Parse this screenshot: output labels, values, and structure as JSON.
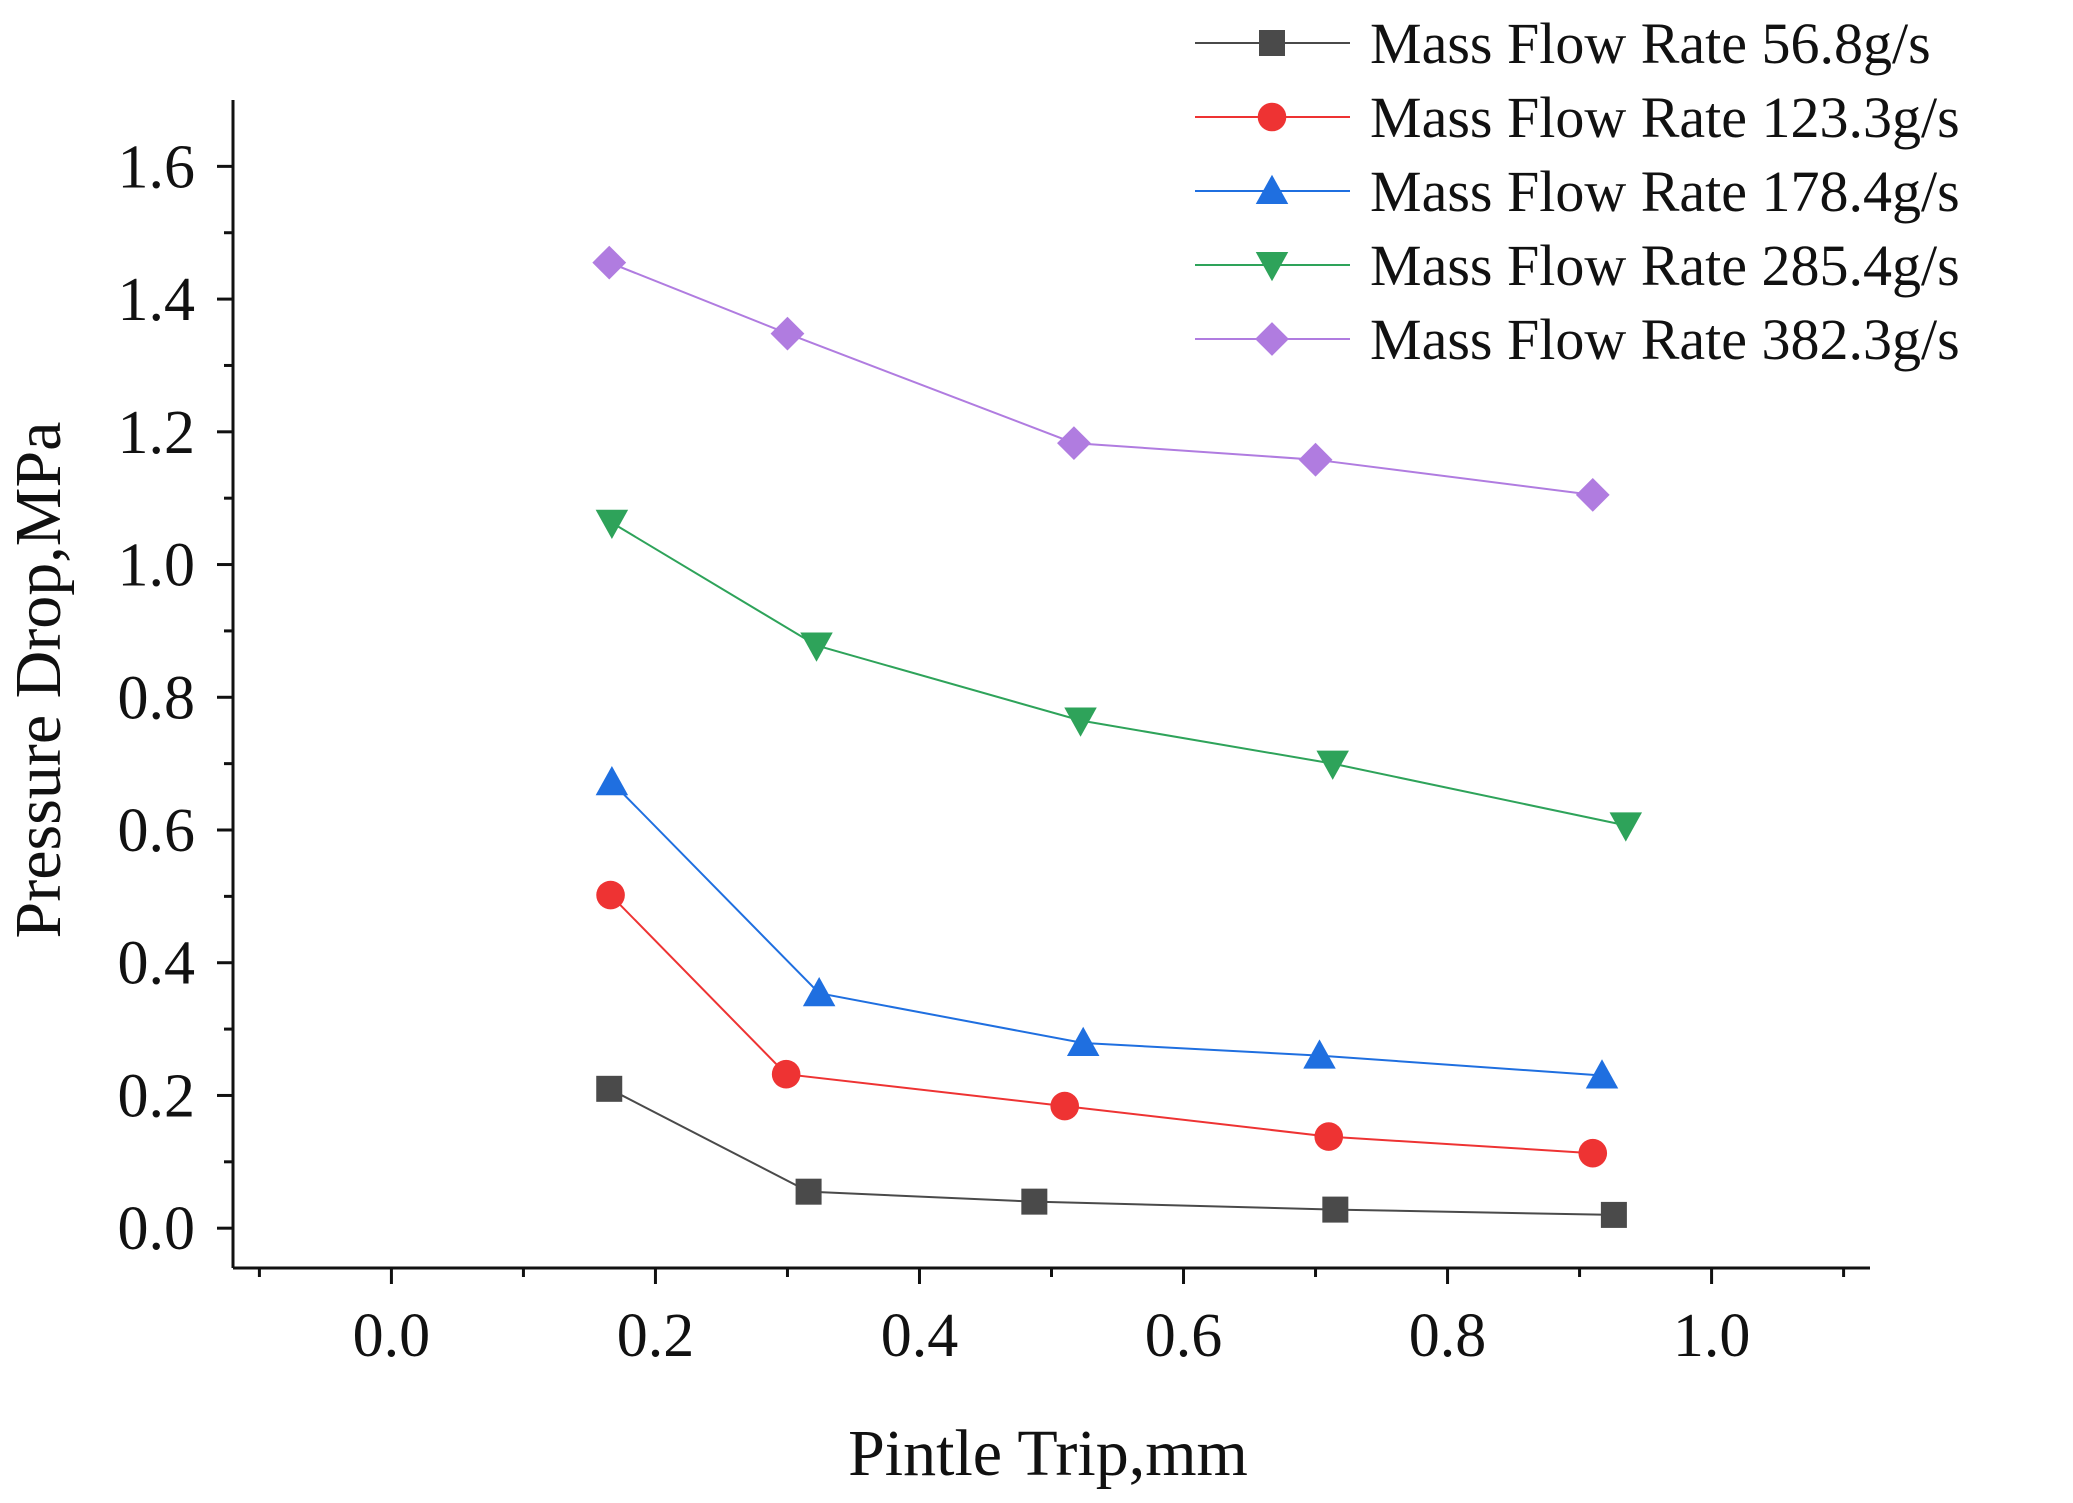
{
  "chart_data": {
    "type": "line",
    "xlabel": "Pintle Trip,mm",
    "ylabel": "Pressure Drop,MPa",
    "xlim": [
      -0.12,
      1.12
    ],
    "ylim": [
      -0.06,
      1.7
    ],
    "x_ticks": [
      0.0,
      0.2,
      0.4,
      0.6,
      0.8,
      1.0
    ],
    "x_tick_labels": [
      "0.0",
      "0.2",
      "0.4",
      "0.6",
      "0.8",
      "1.0"
    ],
    "y_ticks": [
      0.0,
      0.2,
      0.4,
      0.6,
      0.8,
      1.0,
      1.2,
      1.4,
      1.6
    ],
    "y_tick_labels": [
      "0.0",
      "0.2",
      "0.4",
      "0.6",
      "0.8",
      "1.0",
      "1.2",
      "1.4",
      "1.6"
    ],
    "grid": false,
    "legend_position": "top-right",
    "series": [
      {
        "name": "Mass Flow Rate 56.8g/s",
        "marker": "square",
        "color": "#4a4a4a",
        "x": [
          0.165,
          0.316,
          0.487,
          0.715,
          0.926
        ],
        "y": [
          0.21,
          0.055,
          0.04,
          0.028,
          0.02
        ]
      },
      {
        "name": "Mass Flow Rate 123.3g/s",
        "marker": "circle",
        "color": "#ee3333",
        "x": [
          0.166,
          0.299,
          0.51,
          0.71,
          0.91
        ],
        "y": [
          0.502,
          0.232,
          0.184,
          0.138,
          0.113
        ]
      },
      {
        "name": "Mass Flow Rate 178.4g/s",
        "marker": "triangle-up",
        "color": "#1f6fe0",
        "x": [
          0.167,
          0.324,
          0.524,
          0.703,
          0.917
        ],
        "y": [
          0.672,
          0.354,
          0.279,
          0.26,
          0.23
        ]
      },
      {
        "name": "Mass Flow Rate 285.4g/s",
        "marker": "triangle-down",
        "color": "#2ea35a",
        "x": [
          0.167,
          0.322,
          0.522,
          0.713,
          0.935
        ],
        "y": [
          1.063,
          0.878,
          0.765,
          0.7,
          0.607
        ]
      },
      {
        "name": "Mass Flow Rate 382.3g/s",
        "marker": "diamond",
        "color": "#b07ce0",
        "x": [
          0.165,
          0.3,
          0.517,
          0.7,
          0.91
        ],
        "y": [
          1.455,
          1.348,
          1.183,
          1.158,
          1.105
        ]
      }
    ]
  }
}
